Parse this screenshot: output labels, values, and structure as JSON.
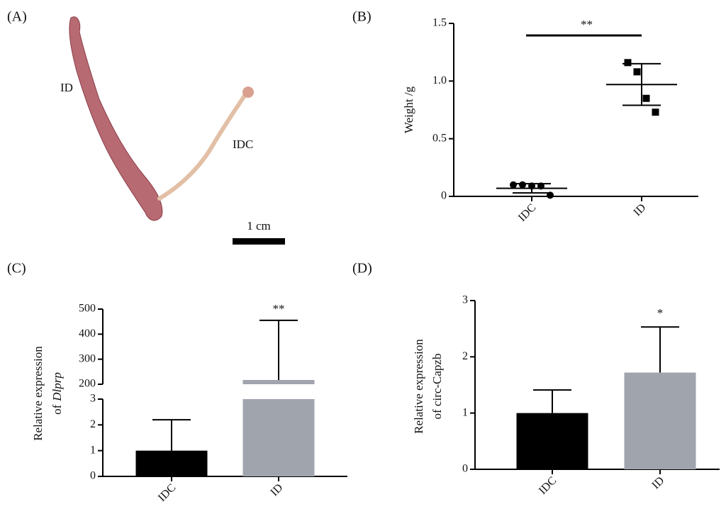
{
  "image_panel": {
    "panel_label": "(A)",
    "labels": [
      "ID",
      "IDC"
    ],
    "scale_bar": "1 cm"
  },
  "chart_data": [
    {
      "type": "dot_plot",
      "panel_label": "(B)",
      "ylabel": "Weight /g",
      "categories": [
        "IDC",
        "ID"
      ],
      "points": [
        [
          0.1,
          0.1,
          0.09,
          0.09,
          0.01
        ],
        [
          1.16,
          1.08,
          0.85,
          0.73
        ]
      ],
      "means": [
        0.07,
        0.97
      ],
      "errors": [
        0.04,
        0.18
      ],
      "ylim": [
        0,
        1.5
      ],
      "yticks": [
        0,
        0.5,
        {
          "value": 1,
          "label": "1.0"
        },
        1.5
      ],
      "significance": "**",
      "colors": [
        "#000000",
        "#000000"
      ]
    },
    {
      "type": "broken_bar",
      "panel_label": "(C)",
      "ylabel": {
        "line1": "Relative expression",
        "line2": "of",
        "gene": "Dlprp"
      },
      "categories": [
        "IDC",
        "ID"
      ],
      "values": [
        1,
        217
      ],
      "errors": [
        1.2,
        238
      ],
      "ylim": [
        0,
        500
      ],
      "break": [
        3,
        200
      ],
      "yticks": [
        0,
        1,
        2,
        3,
        200,
        300,
        400,
        500
      ],
      "significance": "**",
      "colors": [
        "#000000",
        "#a0a4ad"
      ]
    },
    {
      "type": "bar",
      "panel_label": "(D)",
      "ylabel": {
        "line1": "Relative expression",
        "line2": "of circ-Capzb"
      },
      "categories": [
        "IDC",
        "ID"
      ],
      "values": [
        1.0,
        1.72
      ],
      "errors": [
        0.41,
        0.81
      ],
      "ylim": [
        0,
        3
      ],
      "yticks": [
        0,
        1,
        2,
        3
      ],
      "significance": "*",
      "colors": [
        "#000000",
        "#a0a4ad"
      ]
    }
  ]
}
